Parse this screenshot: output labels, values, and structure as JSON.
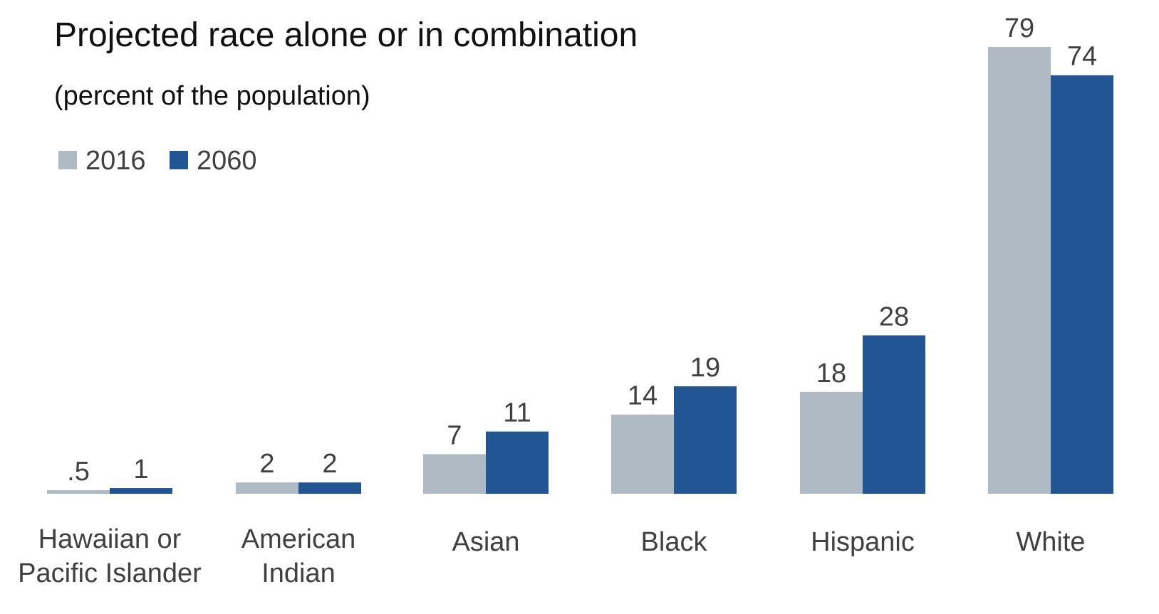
{
  "chart_data": {
    "type": "bar",
    "title": "Projected race alone or in combination",
    "subtitle": "(percent of the population)",
    "categories": [
      [
        "Hawaiian or",
        "Pacific Islander"
      ],
      [
        "American",
        "Indian"
      ],
      [
        "Asian"
      ],
      [
        "Black"
      ],
      [
        "Hispanic"
      ],
      [
        "White"
      ]
    ],
    "series": [
      {
        "name": "2016",
        "color": "#aebbc4",
        "values": [
          0.5,
          2,
          7,
          14,
          18,
          79
        ],
        "labels": [
          ".5",
          "2",
          "7",
          "14",
          "18",
          "79"
        ]
      },
      {
        "name": "2060",
        "color": "#225593",
        "values": [
          1,
          2,
          11,
          19,
          28,
          74
        ],
        "labels": [
          "1",
          "2",
          "11",
          "19",
          "28",
          "74"
        ]
      }
    ],
    "ylim": [
      0,
      79
    ],
    "grid": false,
    "legend_position": "top-left",
    "xlabel": "",
    "ylabel": ""
  }
}
